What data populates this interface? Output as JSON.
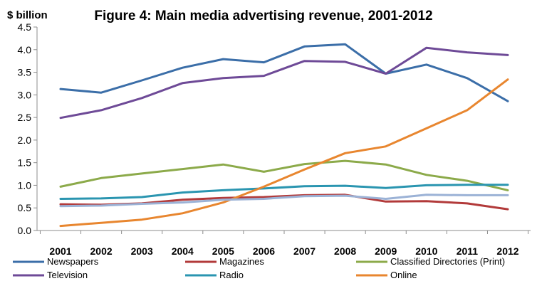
{
  "chart_data": {
    "type": "line",
    "title": "Figure 4: Main media advertising revenue, 2001-2012",
    "ylabel": "$ billion",
    "xlabel": "",
    "ylim": [
      0,
      4.5
    ],
    "yticks": [
      "0.0",
      "0.5",
      "1.0",
      "1.5",
      "2.0",
      "2.5",
      "3.0",
      "3.5",
      "4.0",
      "4.5"
    ],
    "categories": [
      "2001",
      "2002",
      "2003",
      "2004",
      "2005",
      "2006",
      "2007",
      "2008",
      "2009",
      "2010",
      "2011",
      "2012"
    ],
    "grid": false,
    "legend_position": "bottom",
    "series": [
      {
        "name": "Newspapers",
        "color": "#3b6ea8",
        "values": [
          3.13,
          3.05,
          3.32,
          3.6,
          3.79,
          3.72,
          4.07,
          4.12,
          3.47,
          3.67,
          3.37,
          2.86
        ]
      },
      {
        "name": "Magazines",
        "color": "#b23a3a",
        "values": [
          0.58,
          0.57,
          0.6,
          0.68,
          0.72,
          0.74,
          0.78,
          0.79,
          0.64,
          0.65,
          0.6,
          0.47
        ]
      },
      {
        "name": "Classified Directories (Print)",
        "color": "#8caa4a",
        "values": [
          0.97,
          1.16,
          1.26,
          1.36,
          1.46,
          1.3,
          1.47,
          1.54,
          1.46,
          1.23,
          1.1,
          0.89
        ]
      },
      {
        "name": "Television",
        "color": "#6e4a97",
        "values": [
          2.49,
          2.66,
          2.93,
          3.26,
          3.37,
          3.42,
          3.75,
          3.73,
          3.47,
          4.04,
          3.94,
          3.88
        ]
      },
      {
        "name": "Radio",
        "color": "#2a95b0",
        "values": [
          0.7,
          0.71,
          0.74,
          0.84,
          0.89,
          0.93,
          0.98,
          0.99,
          0.94,
          1.0,
          1.01,
          1.01
        ]
      },
      {
        "name": "Online",
        "color": "#e8862f",
        "values": [
          0.1,
          0.17,
          0.24,
          0.38,
          0.62,
          0.97,
          1.35,
          1.71,
          1.86,
          2.26,
          2.66,
          3.34
        ]
      },
      {
        "name": "",
        "color": "#9bb2d6",
        "values": [
          0.54,
          0.55,
          0.59,
          0.62,
          0.68,
          0.7,
          0.76,
          0.77,
          0.7,
          0.79,
          0.78,
          0.78
        ]
      }
    ]
  }
}
